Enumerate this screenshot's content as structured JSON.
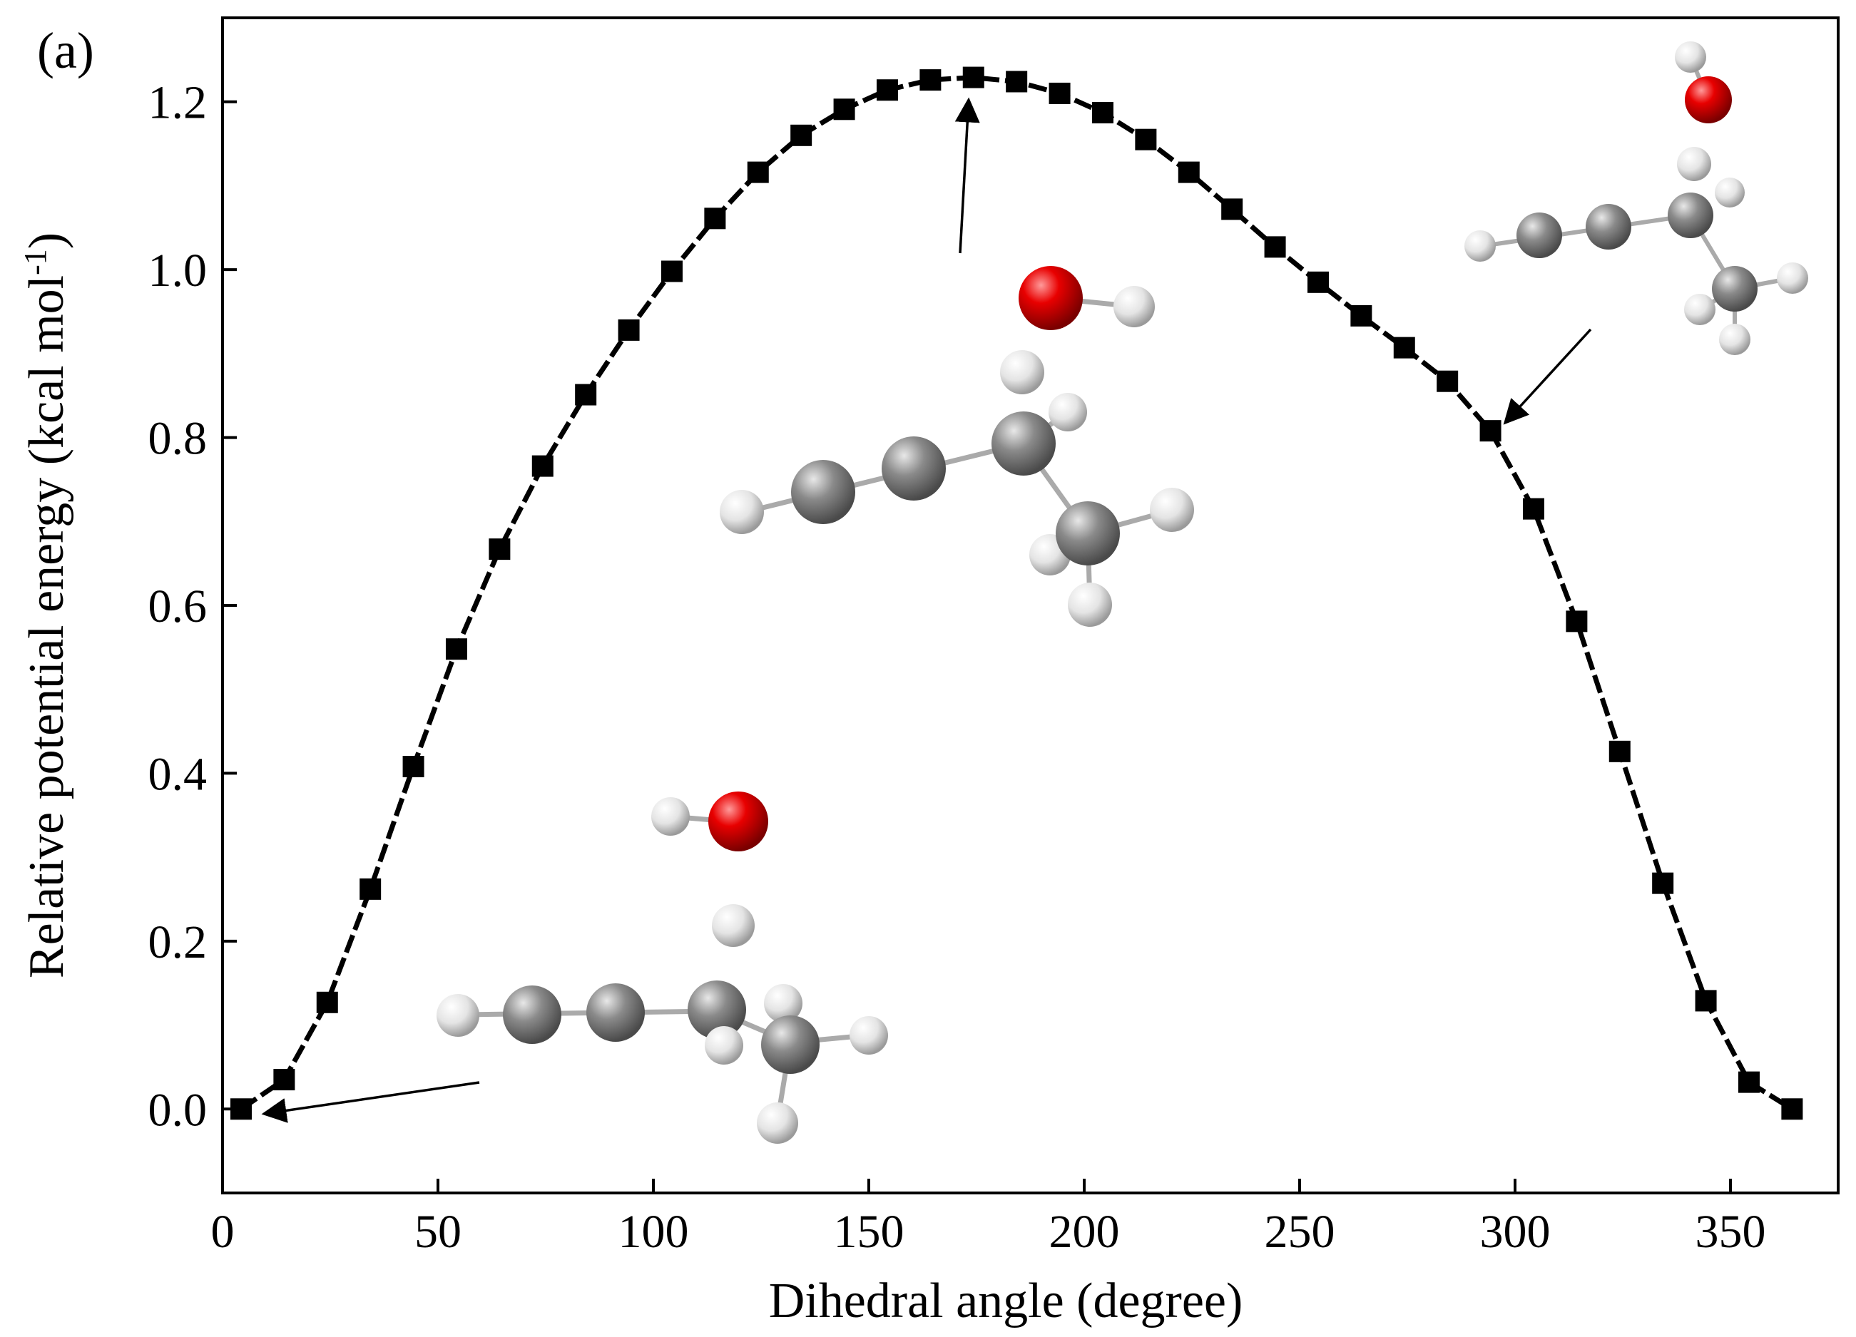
{
  "panel_label": "(a)",
  "chart_data": {
    "type": "line",
    "title": "",
    "xlabel": "Dihedral angle (degree)",
    "ylabel": "Relative potential energy (kcal mol",
    "ylabel_sup": "-1",
    "ylabel_close": ")",
    "xlim": [
      0,
      375
    ],
    "ylim": [
      -0.1,
      1.3
    ],
    "xticks": [
      0,
      50,
      100,
      150,
      200,
      250,
      300,
      350
    ],
    "yticks": [
      0.0,
      0.2,
      0.4,
      0.6,
      0.8,
      1.0,
      1.2
    ],
    "xtick_labels": [
      "0",
      "50",
      "100",
      "150",
      "200",
      "250",
      "300",
      "350"
    ],
    "ytick_labels": [
      "0.0",
      "0.2",
      "0.4",
      "0.6",
      "0.8",
      "1.0",
      "1.2"
    ],
    "grid": false,
    "marker": "square",
    "line_style": "dashed",
    "color": "#000000",
    "series": [
      {
        "x": [
          4.3,
          14.3,
          24.3,
          34.3,
          44.3,
          54.3,
          64.3,
          74.3,
          84.3,
          94.3,
          104.3,
          114.3,
          124.3,
          134.3,
          144.3,
          154.3,
          164.3,
          174.3,
          184.3,
          194.3,
          204.3,
          214.3,
          224.3,
          234.3,
          244.3,
          254.3,
          264.3,
          274.3,
          284.3,
          294.3,
          304.3,
          314.3,
          324.3,
          334.3,
          344.3,
          354.3,
          364.3
        ],
        "values": [
          0.0,
          0.035,
          0.127,
          0.262,
          0.408,
          0.548,
          0.667,
          0.766,
          0.851,
          0.928,
          0.998,
          1.061,
          1.116,
          1.16,
          1.191,
          1.214,
          1.226,
          1.229,
          1.224,
          1.21,
          1.187,
          1.155,
          1.116,
          1.072,
          1.027,
          0.985,
          0.945,
          0.907,
          0.867,
          0.808,
          0.715,
          0.581,
          0.426,
          0.269,
          0.129,
          0.032,
          0.0
        ]
      }
    ]
  },
  "molecules": [
    {
      "name": "structure-minimum",
      "atoms": [
        {
          "el": "H",
          "x": 5,
          "y": 0.315,
          "r": 1.0
        },
        {
          "el": "O",
          "x": 6.7,
          "y": 0.31,
          "r": 1.4
        },
        {
          "el": "H",
          "x": 6.6,
          "y": 0.245,
          "r": 1.0
        },
        {
          "el": "H",
          "x": -0.25,
          "y": 0.18,
          "r": 1.0
        },
        {
          "el": "C",
          "x": 1.6,
          "y": 0.178,
          "r": 1.4
        },
        {
          "el": "C",
          "x": 3.7,
          "y": 0.176,
          "r": 1.4
        },
        {
          "el": "C",
          "x": 5.8,
          "y": 0.174,
          "r": 1.4
        },
        {
          "el": "H",
          "x": 5.95,
          "y": 0.14,
          "r": 1.0
        },
        {
          "el": "H",
          "x": 7.2,
          "y": 0.18,
          "r": 1.0
        },
        {
          "el": "C",
          "x": 7.3,
          "y": 0.16,
          "r": 1.4
        },
        {
          "el": "H",
          "x": 9.0,
          "y": 0.165,
          "r": 1.0
        },
        {
          "el": "H",
          "x": 7.1,
          "y": 0.115,
          "r": 1.0
        }
      ]
    }
  ],
  "atom_colors": {
    "C": "#7f7f7f",
    "H": "#e6e6e6",
    "O": "#e00000"
  }
}
